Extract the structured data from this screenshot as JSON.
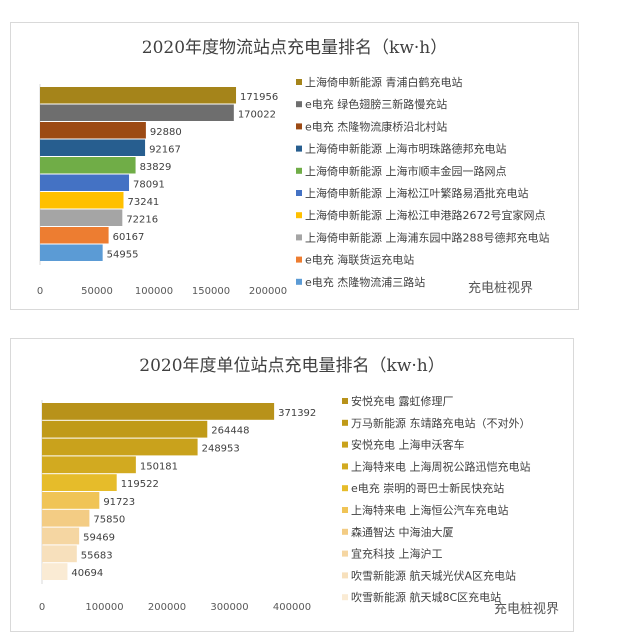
{
  "chart_data": [
    {
      "type": "bar",
      "orientation": "horizontal",
      "title": "2020年度物流站点充电量排名（kw·h）",
      "xlim": [
        0,
        200000
      ],
      "xticks": [
        0,
        50000,
        100000,
        150000,
        200000
      ],
      "legend": "right",
      "categories": [
        "上海倚申新能源 青浦白鹤充电站",
        "e电充 绿色翅膀三新路慢充站",
        "e电充 杰隆物流康桥沿北村站",
        "上海倚申新能源 上海市明珠路德邦充电站",
        "上海倚申新能源 上海市顺丰金园一路网点",
        "上海倚申新能源 上海松江叶繁路易酒批充电站",
        "上海倚申新能源 上海松江申港路2672号宜家网点",
        "上海倚申新能源 上海浦东园中路288号德邦充电站",
        "e电充 海联货运充电站",
        "e电充 杰隆物流浦三路站"
      ],
      "values": [
        171956,
        170022,
        92880,
        92167,
        83829,
        78091,
        73241,
        72216,
        60167,
        54955
      ],
      "colors": [
        "#A5841A",
        "#6E6E6E",
        "#9C4A14",
        "#275E8F",
        "#70AD47",
        "#4472C4",
        "#FFC000",
        "#A5A5A5",
        "#ED7D31",
        "#5B9BD5"
      ]
    },
    {
      "type": "bar",
      "orientation": "horizontal",
      "title": "2020年度单位站点充电量排名（kw·h）",
      "xlim": [
        0,
        400000
      ],
      "xticks": [
        0,
        100000,
        200000,
        300000,
        400000
      ],
      "legend": "right",
      "categories": [
        "安悦充电 露虹修理厂",
        "万马新能源 东靖路充电站（不对外）",
        "安悦充电 上海申沃客车",
        "上海特来电 上海周祝公路迅恺充电站",
        "e电充 崇明的哥巴士新民快充站",
        "上海特来电 上海恒公汽车充电站",
        "森通智达 中海油大厦",
        "宜充科技 上海沪工",
        "吹雪新能源 航天城光伏A区充电站",
        "吹雪新能源 航天城8C区充电站"
      ],
      "values": [
        371392,
        264448,
        248953,
        150181,
        119522,
        91723,
        75850,
        59469,
        55683,
        40694
      ],
      "colors": [
        "#B8921A",
        "#C09A18",
        "#C9A21C",
        "#D2AA20",
        "#E6BC2A",
        "#F0C456",
        "#F3CC84",
        "#F5D6A2",
        "#F7E0BC",
        "#FAEBD4"
      ]
    }
  ],
  "watermark": "充电桩视界"
}
